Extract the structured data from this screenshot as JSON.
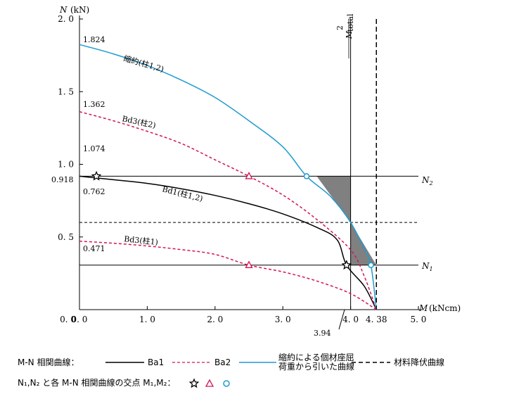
{
  "chart_data": {
    "type": "line",
    "x": {
      "label": "M",
      "unit": "(kNcm)",
      "range": [
        0,
        5.0
      ],
      "ticks": [
        "0.0",
        "1.0",
        "2.0",
        "3.0",
        "4.0",
        "4.38",
        "5.0"
      ]
    },
    "y": {
      "label": "N",
      "unit": "(kN)",
      "range": [
        0,
        2.0
      ],
      "ticks": [
        "0.5",
        "1.0",
        "1.5",
        "2.0"
      ]
    },
    "series": [
      {
        "name": "Ba1",
        "label": "Bd1(柱1,2)",
        "color": "#000000",
        "style": "solid",
        "points": [
          [
            0,
            0.918
          ],
          [
            0.5,
            0.894
          ],
          [
            1.0,
            0.869
          ],
          [
            1.5,
            0.832
          ],
          [
            2.0,
            0.786
          ],
          [
            2.5,
            0.729
          ],
          [
            3.0,
            0.659
          ],
          [
            3.5,
            0.566
          ],
          [
            3.8,
            0.481
          ],
          [
            3.94,
            0.306
          ],
          [
            4.2,
            0.162
          ],
          [
            4.38,
            0
          ]
        ]
      },
      {
        "name": "Ba2",
        "label": "Bd3(柱2)",
        "color": "#d4145a",
        "style": "dashed",
        "points": [
          [
            0,
            1.362
          ],
          [
            0.5,
            1.3
          ],
          [
            1.0,
            1.227
          ],
          [
            1.5,
            1.144
          ],
          [
            2.0,
            1.031
          ],
          [
            2.5,
            0.918
          ],
          [
            3.0,
            0.789
          ],
          [
            3.5,
            0.621
          ],
          [
            4.0,
            0.411
          ],
          [
            4.2,
            0.231
          ],
          [
            4.38,
            0
          ]
        ]
      },
      {
        "name": "Ba2",
        "label": "Bd3(柱1)",
        "color": "#d4145a",
        "style": "dashed",
        "points": [
          [
            0,
            0.471
          ],
          [
            0.5,
            0.457
          ],
          [
            1.0,
            0.438
          ],
          [
            1.5,
            0.413
          ],
          [
            2.0,
            0.38
          ],
          [
            2.5,
            0.306
          ],
          [
            3.0,
            0.26
          ],
          [
            3.5,
            0.197
          ],
          [
            4.0,
            0.11
          ],
          [
            4.38,
            0
          ]
        ]
      },
      {
        "name": "縮約による個材座屈荷重から引いた曲線",
        "label": "縮約(柱1,2)",
        "color": "#1f9bcf",
        "style": "solid",
        "points": [
          [
            0,
            1.824
          ],
          [
            0.5,
            1.76
          ],
          [
            1.0,
            1.68
          ],
          [
            1.5,
            1.58
          ],
          [
            2.0,
            1.46
          ],
          [
            2.5,
            1.3
          ],
          [
            3.0,
            1.12
          ],
          [
            3.35,
            0.918
          ],
          [
            3.7,
            0.78
          ],
          [
            4.0,
            0.6
          ],
          [
            4.2,
            0.42
          ],
          [
            4.3,
            0.306
          ],
          [
            4.38,
            0
          ]
        ]
      }
    ],
    "reference_lines": [
      {
        "type": "h",
        "y": 0.918,
        "label": "N₂"
      },
      {
        "type": "h",
        "y": 0.306,
        "label": "N₁"
      },
      {
        "type": "h_dashed",
        "y": 0.6
      },
      {
        "type": "v",
        "x": 4.0,
        "label": "M_total / 2"
      },
      {
        "type": "v_dashed",
        "x": 4.38
      }
    ],
    "markers": [
      {
        "symbol": "star",
        "x": 0.25,
        "y": 0.918
      },
      {
        "symbol": "star",
        "x": 3.94,
        "y": 0.306
      },
      {
        "symbol": "triangle",
        "x": 2.5,
        "y": 0.918
      },
      {
        "symbol": "triangle",
        "x": 2.5,
        "y": 0.306
      },
      {
        "symbol": "circle",
        "x": 3.35,
        "y": 0.918
      },
      {
        "symbol": "circle",
        "x": 4.3,
        "y": 0.306
      }
    ],
    "shaded_regions": [
      {
        "color": "#808080",
        "points": [
          [
            3.5,
            0.918
          ],
          [
            4.0,
            0.918
          ],
          [
            4.0,
            0.6
          ]
        ]
      },
      {
        "color": "#808080",
        "points": [
          [
            4.0,
            0.6
          ],
          [
            4.0,
            0.306
          ],
          [
            4.38,
            0.306
          ]
        ]
      }
    ],
    "y_annotations": [
      "1.824",
      "1.362",
      "1.074",
      "0.918",
      "0.762",
      "0.471"
    ],
    "x_annotations": [
      "3.94"
    ]
  },
  "legend": {
    "row1_title": "M-N 相関曲線：",
    "items": [
      {
        "label": "Ba1",
        "color": "#000000",
        "style": "solid"
      },
      {
        "label": "Ba2",
        "color": "#d4145a",
        "style": "dashed"
      },
      {
        "label": "縮約による個材座屈荷重から引いた曲線",
        "line1": "縮約による個材座屈",
        "line2": "荷重から引いた曲線",
        "color": "#1f9bcf",
        "style": "solid"
      },
      {
        "label": "材料降伏曲線",
        "color": "#000000",
        "style": "dashed"
      }
    ],
    "row2_title": "N₁,N₂ と各 M-N 相関曲線の交点 M₁,M₂："
  },
  "colors": {
    "black": "#000000",
    "magenta": "#d4145a",
    "blue": "#1f9bcf",
    "gray": "#808080"
  }
}
